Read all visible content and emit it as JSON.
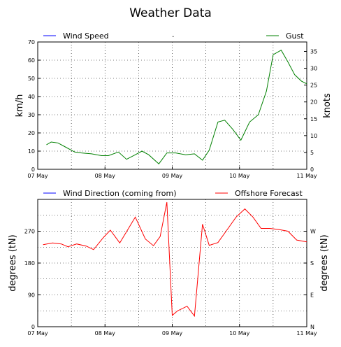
{
  "title": "Weather Data",
  "colors": {
    "blue": "#0000ff",
    "green": "#008000",
    "red": "#ff0000",
    "grid": "#000000"
  },
  "chart_data": [
    {
      "type": "line",
      "title": "",
      "legend": {
        "placement": "top",
        "entries": [
          "Wind Speed",
          "Gust"
        ],
        "stray_mark": "."
      },
      "ylabel": "km/h",
      "ylabel_right": "knots",
      "ylim": [
        0,
        70
      ],
      "yticks": [
        "0",
        "10",
        "20",
        "30",
        "40",
        "50",
        "60",
        "70"
      ],
      "y2lim": [
        0,
        37.8
      ],
      "y2ticks": [
        "0",
        "5",
        "10",
        "15",
        "20",
        "25",
        "30",
        "35"
      ],
      "xlim": [
        0,
        4
      ],
      "xticks": [
        0,
        1,
        2,
        3,
        4
      ],
      "xtick_labels": [
        "07 May",
        "08 May",
        "09 May",
        "10 May",
        "11 May"
      ],
      "grid": true,
      "series": [
        {
          "name": "Gust",
          "color": "#008000",
          "x": [
            0.13,
            0.2,
            0.3,
            0.4,
            0.55,
            0.65,
            0.8,
            0.95,
            1.05,
            1.2,
            1.32,
            1.45,
            1.55,
            1.65,
            1.8,
            1.92,
            2.05,
            2.2,
            2.33,
            2.45,
            2.55,
            2.68,
            2.78,
            2.9,
            3.02,
            3.15,
            3.28,
            3.4,
            3.5,
            3.62,
            3.72,
            3.82,
            3.92,
            4.0
          ],
          "y": [
            13.5,
            15,
            14.5,
            12.5,
            9.5,
            9,
            8.5,
            7.5,
            7.5,
            9.5,
            5.5,
            8,
            10,
            8,
            3,
            9,
            9,
            8,
            8.5,
            5,
            10.5,
            26,
            27,
            22,
            16,
            26,
            30,
            43,
            63,
            65.5,
            59,
            52,
            48.5,
            47
          ]
        }
      ]
    },
    {
      "type": "line",
      "title": "",
      "legend": {
        "placement": "top",
        "entries": [
          "Wind Direction (coming from)",
          "Offshore Forecast"
        ]
      },
      "ylabel": "degrees (tN)",
      "ylabel_right": "degrees (tN)",
      "ylim": [
        0,
        360
      ],
      "yticks": [
        "0",
        "90",
        "180",
        "270"
      ],
      "y2ticks": [
        "N",
        "E",
        "S",
        "W"
      ],
      "xlim": [
        0,
        4
      ],
      "xticks": [
        0,
        1,
        2,
        3,
        4
      ],
      "xtick_labels": [
        "07 May",
        "08 May",
        "09 May",
        "10 May",
        "11 May"
      ],
      "grid": true,
      "series": [
        {
          "name": "Offshore Forecast",
          "color": "#ff0000",
          "x": [
            0.08,
            0.22,
            0.35,
            0.45,
            0.58,
            0.72,
            0.83,
            0.98,
            1.08,
            1.22,
            1.34,
            1.45,
            1.6,
            1.72,
            1.82,
            1.92,
            2.0,
            2.08,
            2.22,
            2.33,
            2.45,
            2.55,
            2.68,
            2.8,
            2.95,
            3.08,
            3.2,
            3.32,
            3.45,
            3.58,
            3.72,
            3.85,
            4.0
          ],
          "y": [
            232,
            237,
            234,
            226,
            234,
            228,
            218,
            253,
            273,
            237,
            275,
            310,
            248,
            229,
            255,
            352,
            32,
            45,
            58,
            30,
            290,
            230,
            238,
            270,
            310,
            333,
            310,
            278,
            278,
            275,
            270,
            245,
            240
          ]
        }
      ]
    }
  ]
}
